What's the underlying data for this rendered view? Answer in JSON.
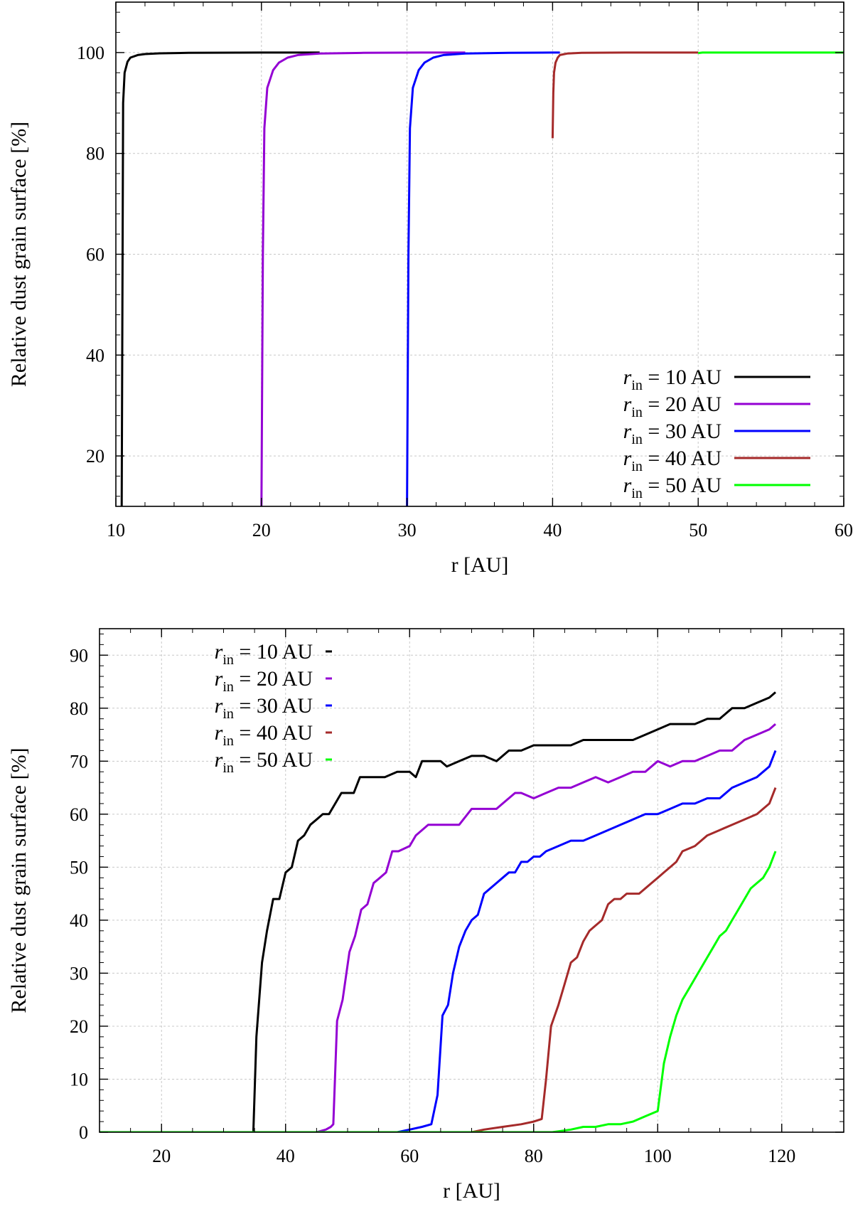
{
  "chart_data": [
    {
      "type": "line",
      "xlabel": "r [AU]",
      "ylabel": "Relative dust grain surface [%]",
      "xlim": [
        10,
        60
      ],
      "ylim": [
        10,
        110
      ],
      "xticks": [
        10,
        20,
        30,
        40,
        50,
        60
      ],
      "yticks": [
        20,
        40,
        60,
        80,
        100
      ],
      "grid": true,
      "legend_position": "bottom-right",
      "series": [
        {
          "name": "r_in = 10 AU",
          "label_symbol": "r",
          "label_sub": "in",
          "label_rest": " = 10 AU",
          "color": "#000000",
          "x": [
            10.4,
            10.45,
            10.5,
            10.6,
            10.8,
            11.0,
            11.5,
            12.0,
            13.0,
            15.0,
            20.0,
            24.0
          ],
          "y": [
            10,
            50,
            90,
            96,
            98.2,
            99,
            99.5,
            99.7,
            99.85,
            99.95,
            100,
            100
          ]
        },
        {
          "name": "r_in = 20 AU",
          "label_symbol": "r",
          "label_sub": "in",
          "label_rest": " = 20 AU",
          "color": "#9400d3",
          "x": [
            20.0,
            20.1,
            20.2,
            20.4,
            20.8,
            21.2,
            21.8,
            22.5,
            24.0,
            27.0,
            31.0,
            34.0
          ],
          "y": [
            10,
            60,
            85,
            93,
            96.5,
            98,
            99,
            99.5,
            99.8,
            99.95,
            100,
            100
          ]
        },
        {
          "name": "r_in = 30 AU",
          "label_symbol": "r",
          "label_sub": "in",
          "label_rest": " = 30 AU",
          "color": "#0000ff",
          "x": [
            30.0,
            30.1,
            30.2,
            30.4,
            30.8,
            31.2,
            31.8,
            32.5,
            34.0,
            37.0,
            40.0,
            40.5
          ],
          "y": [
            10,
            60,
            85,
            93,
            96.5,
            98,
            99,
            99.5,
            99.8,
            99.95,
            100,
            100
          ]
        },
        {
          "name": "r_in = 40 AU",
          "label_symbol": "r",
          "label_sub": "in",
          "label_rest": " = 40 AU",
          "color": "#a52a2a",
          "x": [
            40.0,
            40.05,
            40.1,
            40.2,
            40.35,
            40.5,
            41.0,
            42.0,
            45.0,
            50.0
          ],
          "y": [
            83,
            92,
            96,
            98,
            99,
            99.5,
            99.8,
            99.95,
            100,
            100
          ]
        },
        {
          "name": "r_in = 50 AU",
          "label_symbol": "r",
          "label_sub": "in",
          "label_rest": " = 50 AU",
          "color": "#00ff00",
          "x": [
            50.0,
            50.3,
            51.0,
            55.0,
            60.0
          ],
          "y": [
            99.9,
            100,
            100,
            100,
            100
          ]
        }
      ]
    },
    {
      "type": "line",
      "xlabel": "r [AU]",
      "ylabel": "Relative dust grain surface [%]",
      "xlim": [
        10,
        130
      ],
      "ylim": [
        0,
        95
      ],
      "xticks": [
        20,
        40,
        60,
        80,
        100,
        120
      ],
      "yticks": [
        0,
        10,
        20,
        30,
        40,
        50,
        60,
        70,
        80,
        90
      ],
      "grid": true,
      "legend_position": "top-left",
      "series": [
        {
          "name": "r_in = 10 AU",
          "label_symbol": "r",
          "label_sub": "in",
          "label_rest": " = 10 AU",
          "color": "#000000",
          "x": [
            10,
            34.8,
            35.3,
            36.2,
            37.0,
            38.0,
            39.0,
            40.0,
            41.0,
            42.0,
            43.0,
            44.0,
            45.0,
            46.0,
            47.0,
            48.0,
            49.0,
            50.0,
            51.0,
            52.0,
            54.0,
            56.0,
            58.0,
            60.0,
            61.0,
            62.0,
            63.0,
            64.0,
            65.0,
            66.0,
            68.0,
            70.0,
            72.0,
            74.0,
            76.0,
            78.0,
            80.0,
            82.0,
            84.0,
            86.0,
            88.0,
            90.0,
            92.0,
            94.0,
            96.0,
            98.0,
            100.0,
            102.0,
            104.0,
            106.0,
            108.0,
            110.0,
            112.0,
            114.0,
            116.0,
            118.0,
            119.0
          ],
          "y": [
            0,
            0,
            18,
            32,
            38,
            44,
            44,
            49,
            50,
            55,
            56,
            58,
            59,
            60,
            60,
            62,
            64,
            64,
            64,
            67,
            67,
            67,
            68,
            68,
            67,
            70,
            70,
            70,
            70,
            69,
            70,
            71,
            71,
            70,
            72,
            72,
            73,
            73,
            73,
            73,
            74,
            74,
            74,
            74,
            74,
            75,
            76,
            77,
            77,
            77,
            78,
            78,
            80,
            80,
            81,
            82,
            83
          ]
        },
        {
          "name": "r_in = 20 AU",
          "label_symbol": "r",
          "label_sub": "in",
          "label_rest": " = 20 AU",
          "color": "#9400d3",
          "x": [
            10,
            45,
            46.5,
            47.3,
            47.7,
            48.3,
            49.2,
            50.3,
            51.2,
            52.2,
            53.2,
            54.2,
            55.2,
            56.2,
            57.2,
            58.2,
            60.0,
            61.0,
            62.0,
            63.0,
            64.0,
            66.0,
            68.0,
            70.0,
            72.0,
            74.0,
            75.0,
            77.0,
            78.0,
            80.0,
            82.0,
            84.0,
            86.0,
            88.0,
            90.0,
            92.0,
            94.0,
            96.0,
            98.0,
            100.0,
            102.0,
            104.0,
            106.0,
            108.0,
            110.0,
            112.0,
            114.0,
            116.0,
            118.0,
            119.0
          ],
          "y": [
            0,
            0,
            0.5,
            1,
            1.5,
            21,
            25,
            34,
            37,
            42,
            43,
            47,
            48,
            49,
            53,
            53,
            54,
            56,
            57,
            58,
            58,
            58,
            58,
            61,
            61,
            61,
            62,
            64,
            64,
            63,
            64,
            65,
            65,
            66,
            67,
            66,
            67,
            68,
            68,
            70,
            69,
            70,
            70,
            71,
            72,
            72,
            74,
            75,
            76,
            77
          ]
        },
        {
          "name": "r_in = 30 AU",
          "label_symbol": "r",
          "label_sub": "in",
          "label_rest": " = 30 AU",
          "color": "#0000ff",
          "x": [
            10,
            58,
            60,
            62,
            63.5,
            64.5,
            65.3,
            66.2,
            67.0,
            68.0,
            69.0,
            70.0,
            71.0,
            72.0,
            73.0,
            74.0,
            75.0,
            76.0,
            77.0,
            78.0,
            79.0,
            80.0,
            81.0,
            82.0,
            84.0,
            86.0,
            88.0,
            90.0,
            92.0,
            94.0,
            96.0,
            98.0,
            100.0,
            102.0,
            104.0,
            106.0,
            108.0,
            110.0,
            112.0,
            114.0,
            116.0,
            118.0,
            119.0
          ],
          "y": [
            0,
            0,
            0.5,
            1,
            1.5,
            7,
            22,
            24,
            30,
            35,
            38,
            40,
            41,
            45,
            46,
            47,
            48,
            49,
            49,
            51,
            51,
            52,
            52,
            53,
            54,
            55,
            55,
            56,
            57,
            58,
            59,
            60,
            60,
            61,
            62,
            62,
            63,
            63,
            65,
            66,
            67,
            69,
            72
          ]
        },
        {
          "name": "r_in = 40 AU",
          "label_symbol": "r",
          "label_sub": "in",
          "label_rest": " = 40 AU",
          "color": "#a52a2a",
          "x": [
            10,
            70,
            72,
            75,
            78,
            80,
            81.3,
            82.0,
            82.8,
            84.0,
            85.0,
            86.0,
            87.0,
            88.0,
            89.0,
            90.0,
            91.0,
            92.0,
            93.0,
            94.0,
            95.0,
            96.0,
            97.0,
            98.0,
            99.0,
            100.0,
            101.0,
            102.0,
            103.0,
            104.0,
            106.0,
            108.0,
            110.0,
            112.0,
            114.0,
            116.0,
            118.0,
            119.0
          ],
          "y": [
            0,
            0,
            0.5,
            1,
            1.5,
            2,
            2.5,
            10,
            20,
            24,
            28,
            32,
            33,
            36,
            38,
            39,
            40,
            43,
            44,
            44,
            45,
            45,
            45,
            46,
            47,
            48,
            49,
            50,
            51,
            53,
            54,
            56,
            57,
            58,
            59,
            60,
            62,
            65
          ]
        },
        {
          "name": "r_in = 50 AU",
          "label_symbol": "r",
          "label_sub": "in",
          "label_rest": " = 50 AU",
          "color": "#00ff00",
          "x": [
            10,
            83,
            86,
            88,
            90,
            92,
            94,
            96,
            97,
            98,
            100,
            101,
            102,
            103,
            104,
            105,
            106,
            107,
            108,
            109,
            110,
            111,
            112,
            113,
            114,
            115,
            116,
            117,
            118,
            119
          ],
          "y": [
            0,
            0,
            0.5,
            1,
            1,
            1.5,
            1.5,
            2,
            2.5,
            3,
            4,
            13,
            18,
            22,
            25,
            27,
            29,
            31,
            33,
            35,
            37,
            38,
            40,
            42,
            44,
            46,
            47,
            48,
            50,
            53
          ]
        }
      ]
    }
  ]
}
